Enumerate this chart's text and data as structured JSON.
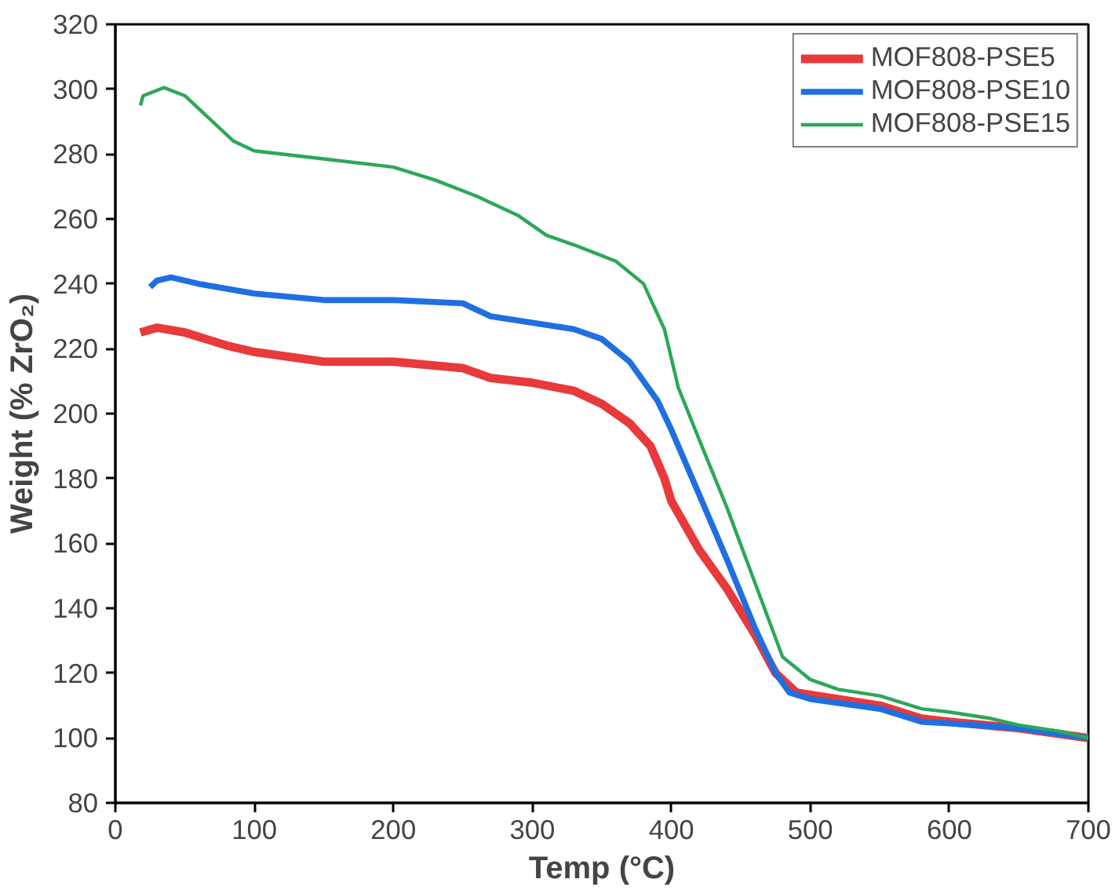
{
  "chart_data": {
    "type": "line",
    "xlabel": "Temp (°C)",
    "ylabel": "Weight (% ZrO₂)",
    "xlim": [
      0,
      700
    ],
    "ylim": [
      80,
      320
    ],
    "xticks": [
      0,
      100,
      200,
      300,
      400,
      500,
      600,
      700
    ],
    "yticks": [
      80,
      100,
      120,
      140,
      160,
      180,
      200,
      220,
      240,
      260,
      280,
      300,
      320
    ],
    "grid": false,
    "legend": "top right",
    "marker": "none",
    "line_style": "solid",
    "series": [
      {
        "name": "MOF808-PSE5",
        "color": "#e8393b",
        "x": [
          18,
          30,
          50,
          80,
          100,
          150,
          200,
          250,
          270,
          300,
          330,
          350,
          370,
          385,
          395,
          400,
          420,
          440,
          460,
          475,
          490,
          520,
          550,
          580,
          600,
          650,
          700
        ],
        "values": [
          225,
          226.5,
          225,
          221,
          219,
          216,
          216,
          214,
          211,
          209.5,
          207,
          203,
          197,
          190,
          180,
          173,
          158,
          146,
          132,
          120,
          114,
          112,
          110,
          106,
          105,
          103,
          100
        ]
      },
      {
        "name": "MOF808-PSE10",
        "color": "#1f6fe0",
        "x": [
          25,
          30,
          40,
          60,
          100,
          150,
          200,
          250,
          270,
          300,
          330,
          350,
          370,
          390,
          400,
          420,
          440,
          460,
          475,
          485,
          500,
          550,
          580,
          600,
          650,
          700
        ],
        "values": [
          239,
          241,
          242,
          240,
          237,
          235,
          235,
          234,
          230,
          228,
          226,
          223,
          216,
          204,
          195,
          175,
          155,
          134,
          120,
          114,
          112,
          109,
          105,
          104.5,
          103,
          100
        ]
      },
      {
        "name": "MOF808-PSE15",
        "color": "#2ca75a",
        "x": [
          18,
          20,
          35,
          50,
          70,
          85,
          100,
          150,
          200,
          230,
          260,
          290,
          310,
          330,
          360,
          380,
          395,
          405,
          420,
          440,
          460,
          480,
          500,
          520,
          550,
          580,
          600,
          630,
          650,
          680,
          700
        ],
        "values": [
          295,
          298,
          300.5,
          298,
          290,
          284,
          281,
          278.5,
          276,
          272,
          267,
          261,
          255,
          252,
          247,
          240,
          226,
          208,
          192,
          171,
          148,
          125,
          118,
          115,
          113,
          109,
          108,
          106,
          104,
          102,
          100
        ]
      }
    ]
  }
}
